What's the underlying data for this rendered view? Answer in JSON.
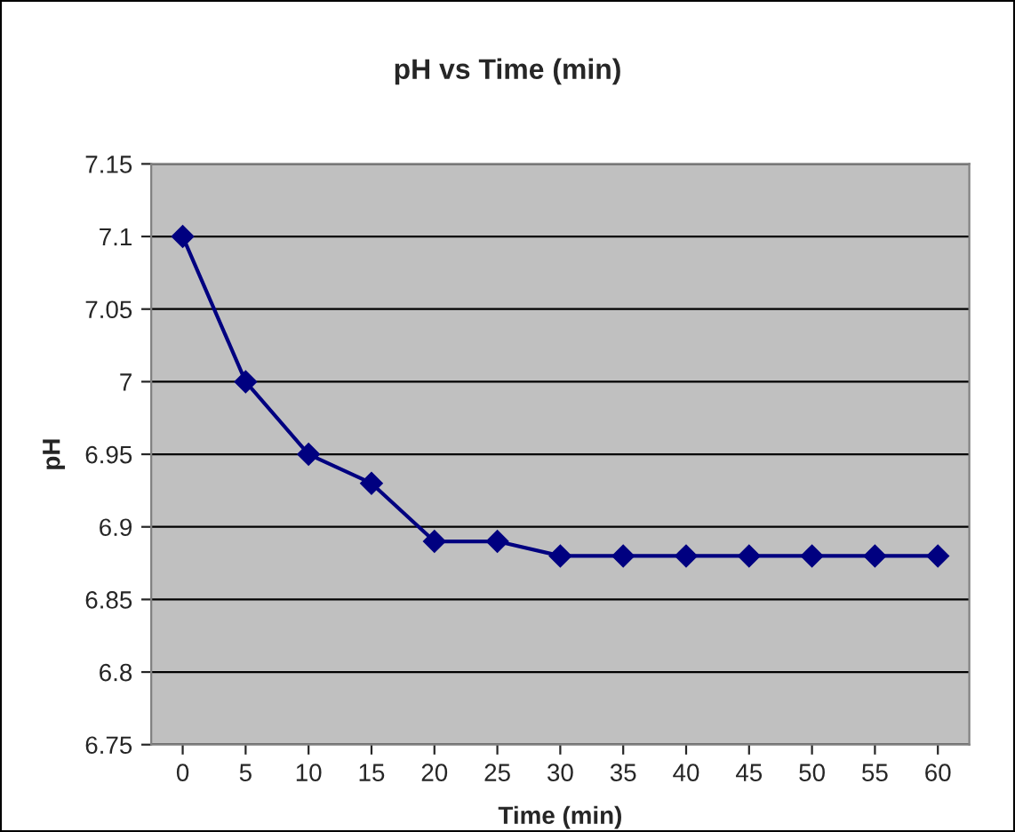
{
  "chart_data": {
    "type": "line",
    "title": "pH vs Time (min)",
    "xlabel": "Time (min)",
    "ylabel": "pH",
    "categories": [
      "0",
      "5",
      "10",
      "15",
      "20",
      "25",
      "30",
      "35",
      "40",
      "45",
      "50",
      "55",
      "60"
    ],
    "series": [
      {
        "color": "#000080",
        "values": [
          7.1,
          7.0,
          6.95,
          6.93,
          6.89,
          6.89,
          6.88,
          6.88,
          6.88,
          6.88,
          6.88,
          6.88,
          6.88
        ]
      }
    ],
    "ylim": [
      6.75,
      7.15
    ],
    "yticks": [
      6.75,
      6.8,
      6.85,
      6.9,
      6.95,
      7,
      7.05,
      7.1,
      7.15
    ],
    "grid": "y",
    "legend": false,
    "marker": "diamond",
    "line_style": "solid"
  }
}
